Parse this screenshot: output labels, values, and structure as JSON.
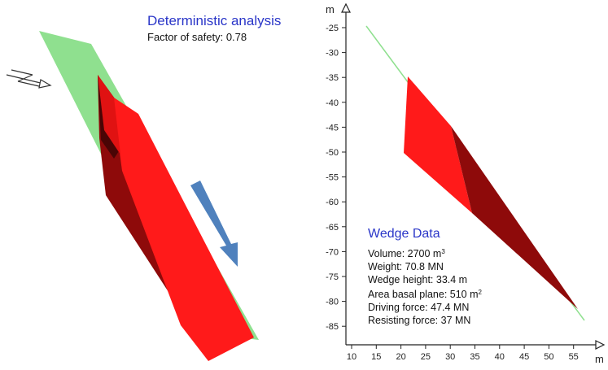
{
  "deterministic": {
    "title": "Deterministic analysis",
    "factor_label": "Factor of safety:",
    "factor_value": "0.78"
  },
  "axes": {
    "x_unit": "m",
    "y_unit": "m",
    "x_ticks": [
      "10",
      "15",
      "20",
      "25",
      "30",
      "35",
      "40",
      "45",
      "50",
      "55"
    ],
    "y_ticks": [
      "-25",
      "-30",
      "-35",
      "-40",
      "-45",
      "-50",
      "-55",
      "-60",
      "-65",
      "-70",
      "-75",
      "-80",
      "-85"
    ]
  },
  "wedge_data": {
    "title": "Wedge Data",
    "volume_label": "Volume:",
    "volume_value": "2700 m",
    "volume_exp": "3",
    "weight_label": "Weight:",
    "weight_value": "70.8 MN",
    "height_label": "Wedge height:",
    "height_value": "33.4 m",
    "area_label": "Area basal plane:",
    "area_value": "510 m",
    "area_exp": "2",
    "driving_label": "Driving force:",
    "driving_value": "47.4 MN",
    "resisting_label": "Resisting force:",
    "resisting_value": "37 MN"
  },
  "colors": {
    "plane_green": "#8fe08f",
    "wedge_red": "#ff1a1a",
    "wedge_dark": "#8e0a0a",
    "arrow_blue": "#4f81bd",
    "title_blue": "#2a36c8"
  }
}
